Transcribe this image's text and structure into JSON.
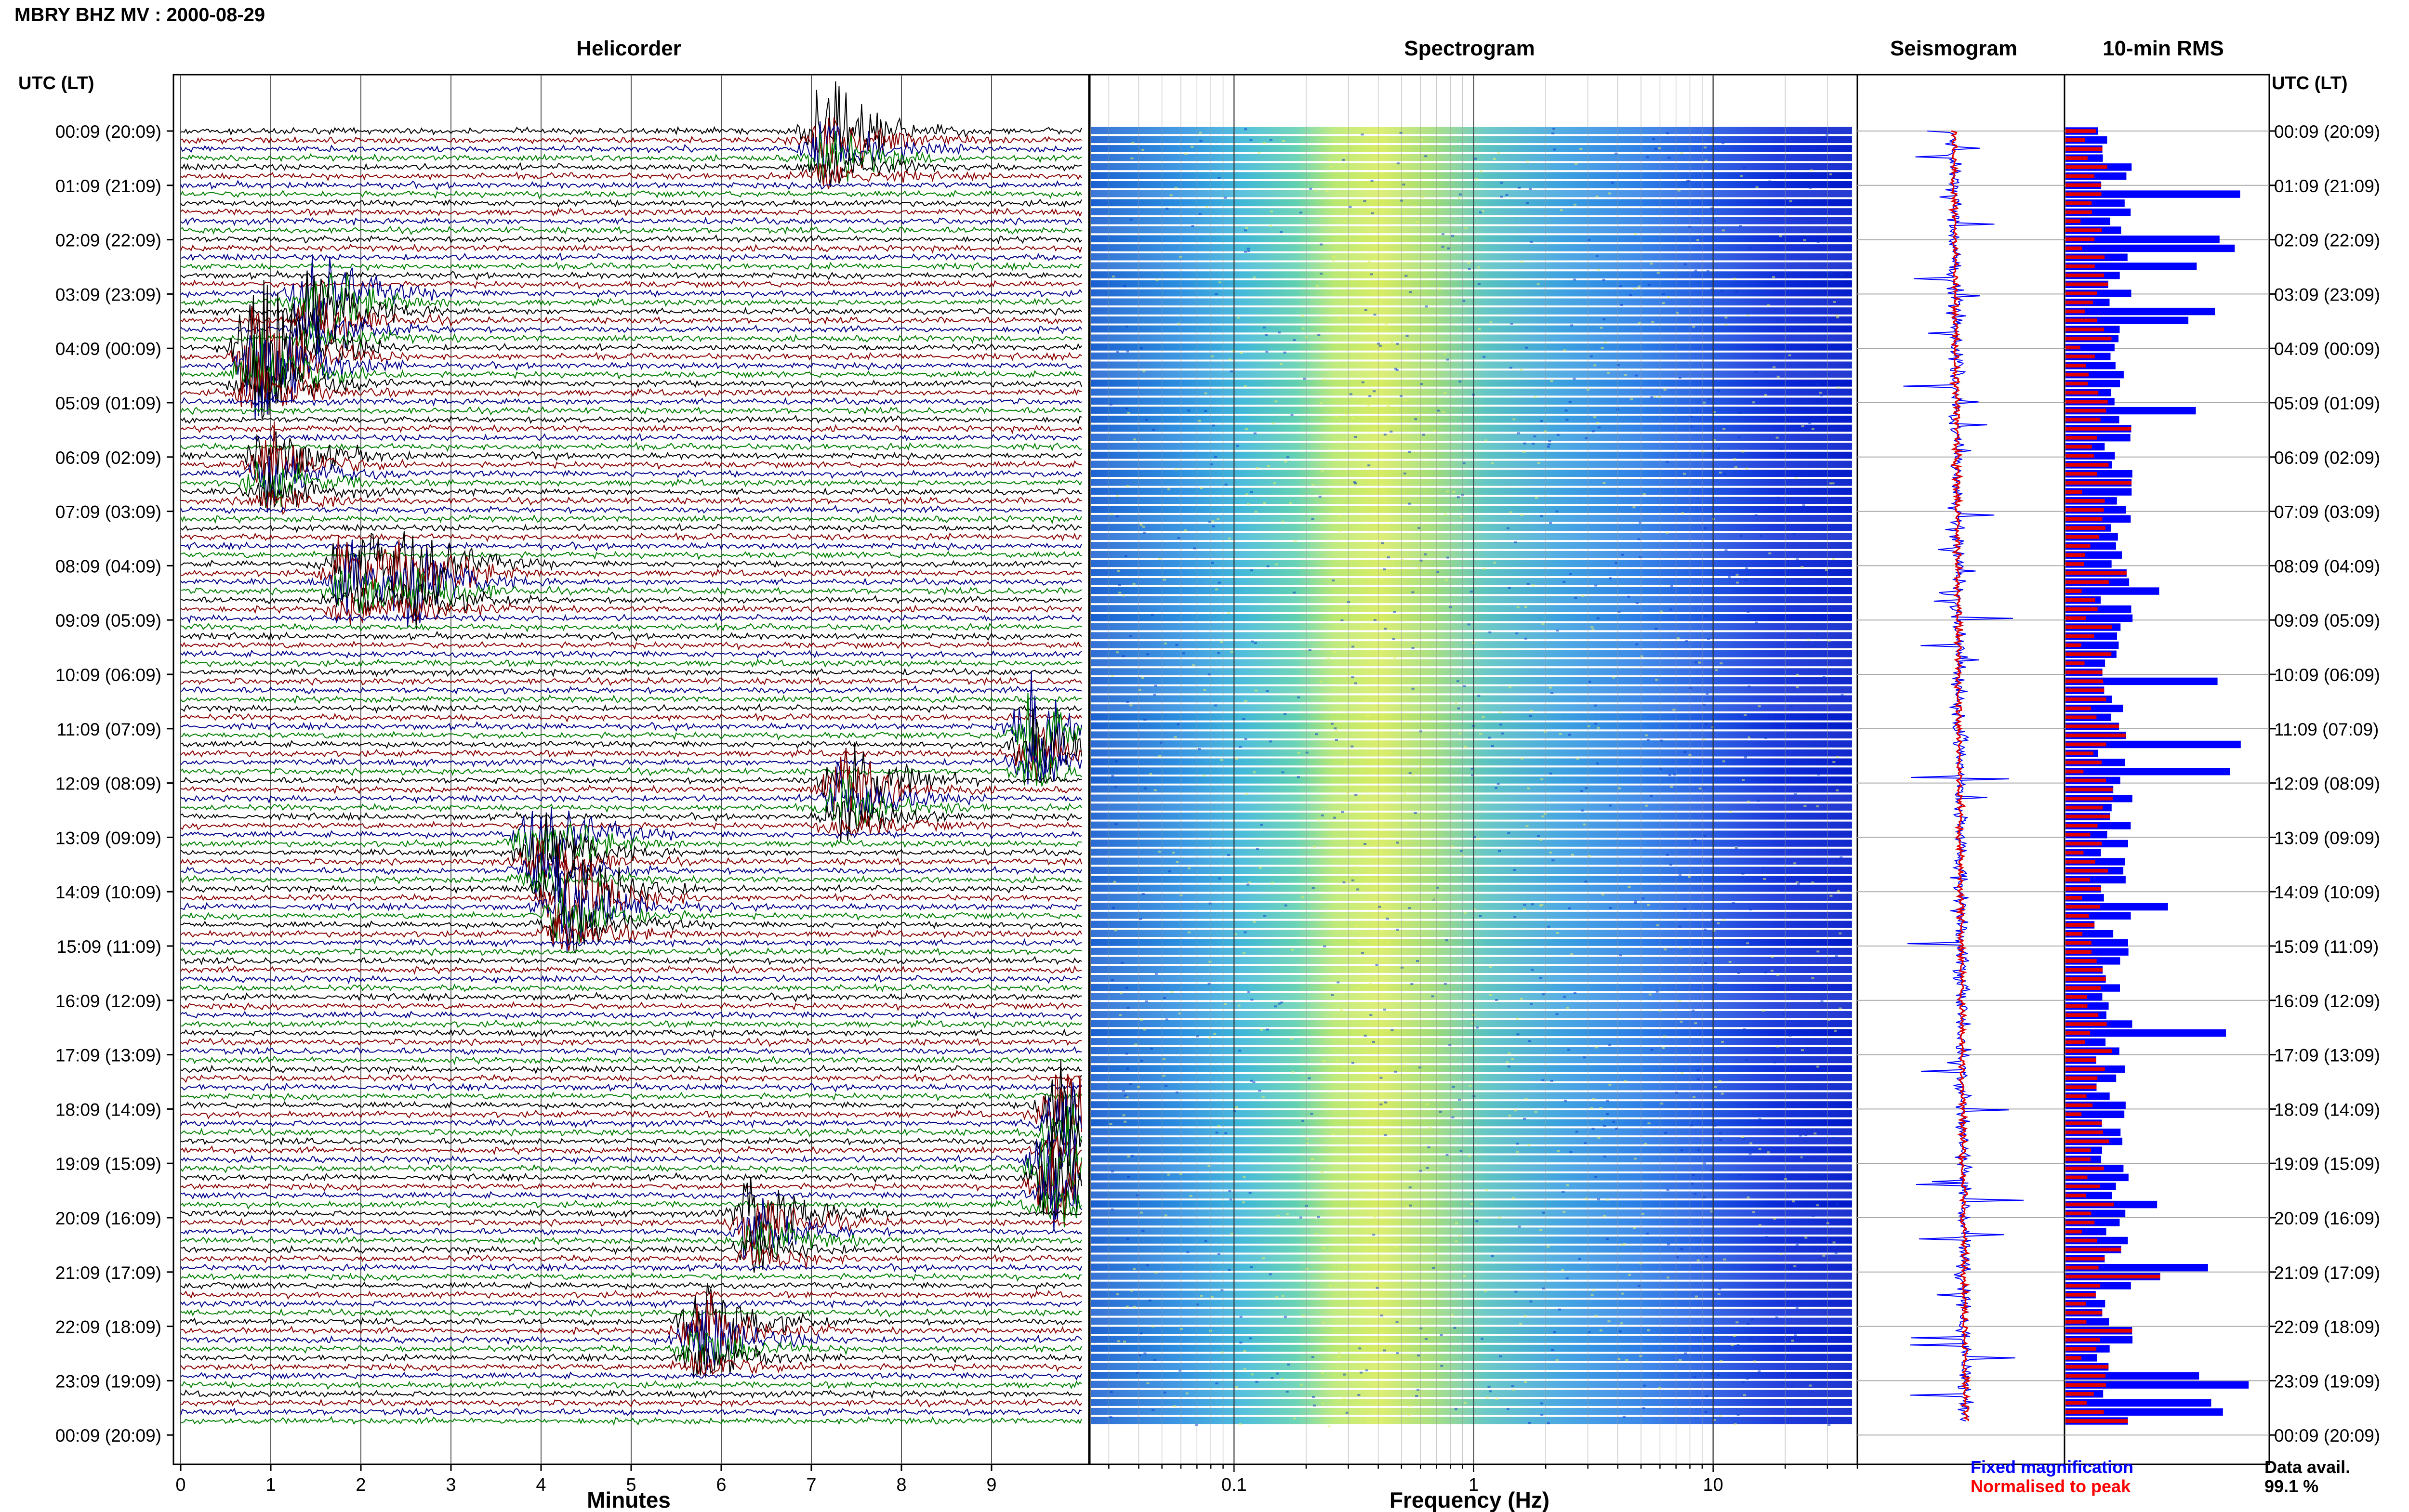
{
  "header": {
    "station_title": "MBRY BHZ MV : 2000-08-29",
    "left_axis_label": "UTC (LT)",
    "right_axis_label": "UTC (LT)"
  },
  "panels": {
    "helicorder": {
      "title": "Helicorder",
      "xlabel": "Minutes"
    },
    "spectrogram": {
      "title": "Spectrogram",
      "xlabel": "Frequency (Hz)"
    },
    "seismogram": {
      "title": "Seismogram"
    },
    "rms": {
      "title": "10-min RMS"
    }
  },
  "legend": {
    "fixed": "Fixed magnification",
    "normalised": "Normalised to peak",
    "fixed_color": "#0000ff",
    "normalised_color": "#ff0000"
  },
  "data_availability": {
    "label": "Data avail.",
    "value": "99.1 %"
  },
  "colors": {
    "trace_colors": [
      "#000000",
      "#8b0000",
      "#00008b",
      "#008000"
    ],
    "rms_fixed": "#0000ff",
    "rms_norm": "#e00000"
  },
  "chart_data": [
    {
      "type": "line",
      "name": "helicorder",
      "title": "Helicorder",
      "xlabel": "Minutes",
      "x_ticks": [
        "0",
        "1",
        "2",
        "3",
        "4",
        "5",
        "6",
        "7",
        "8",
        "9"
      ],
      "xlim": [
        0,
        10
      ],
      "row_labels": [
        "00:09 (20:09)",
        "01:09 (21:09)",
        "02:09 (22:09)",
        "03:09 (23:09)",
        "04:09 (00:09)",
        "05:09 (01:09)",
        "06:09 (02:09)",
        "07:09 (03:09)",
        "08:09 (04:09)",
        "09:09 (05:09)",
        "10:09 (06:09)",
        "11:09 (07:09)",
        "12:09 (08:09)",
        "13:09 (09:09)",
        "14:09 (10:09)",
        "15:09 (11:09)",
        "16:09 (12:09)",
        "17:09 (13:09)",
        "18:09 (14:09)",
        "19:09 (15:09)",
        "20:09 (16:09)",
        "21:09 (17:09)",
        "22:09 (18:09)",
        "23:09 (19:09)",
        "00:09 (20:09)"
      ],
      "events": [
        {
          "row": 0,
          "minute": 7.2,
          "amplitude": 3.2
        },
        {
          "row": 3,
          "minute": 1.5,
          "amplitude": 3.5
        },
        {
          "row": 4,
          "minute": 0.9,
          "amplitude": 5.5
        },
        {
          "row": 6,
          "minute": 1.0,
          "amplitude": 2.6
        },
        {
          "row": 8,
          "minute": 1.9,
          "amplitude": 3.0
        },
        {
          "row": 8,
          "minute": 2.6,
          "amplitude": 2.6
        },
        {
          "row": 11,
          "minute": 9.5,
          "amplitude": 3.5
        },
        {
          "row": 12,
          "minute": 7.4,
          "amplitude": 3.2
        },
        {
          "row": 13,
          "minute": 4.0,
          "amplitude": 3.2
        },
        {
          "row": 14,
          "minute": 4.3,
          "amplitude": 4.0
        },
        {
          "row": 18,
          "minute": 9.8,
          "amplitude": 4.0
        },
        {
          "row": 19,
          "minute": 9.7,
          "amplitude": 4.5
        },
        {
          "row": 20,
          "minute": 6.4,
          "amplitude": 2.6
        },
        {
          "row": 22,
          "minute": 5.8,
          "amplitude": 3.0
        }
      ]
    },
    {
      "type": "heatmap",
      "name": "spectrogram",
      "title": "Spectrogram",
      "xlabel": "Frequency (Hz)",
      "x_scale": "log",
      "xlim": [
        0.025,
        40
      ],
      "x_ticks": [
        "0.1",
        "1",
        "10"
      ]
    },
    {
      "type": "line",
      "name": "seismogram",
      "title": "Seismogram"
    },
    {
      "type": "bar",
      "name": "10-min RMS",
      "title": "10-min RMS",
      "series": [
        {
          "name": "Fixed magnification",
          "color": "#0000ff"
        },
        {
          "name": "Normalised to peak",
          "color": "#e00000"
        }
      ]
    }
  ]
}
